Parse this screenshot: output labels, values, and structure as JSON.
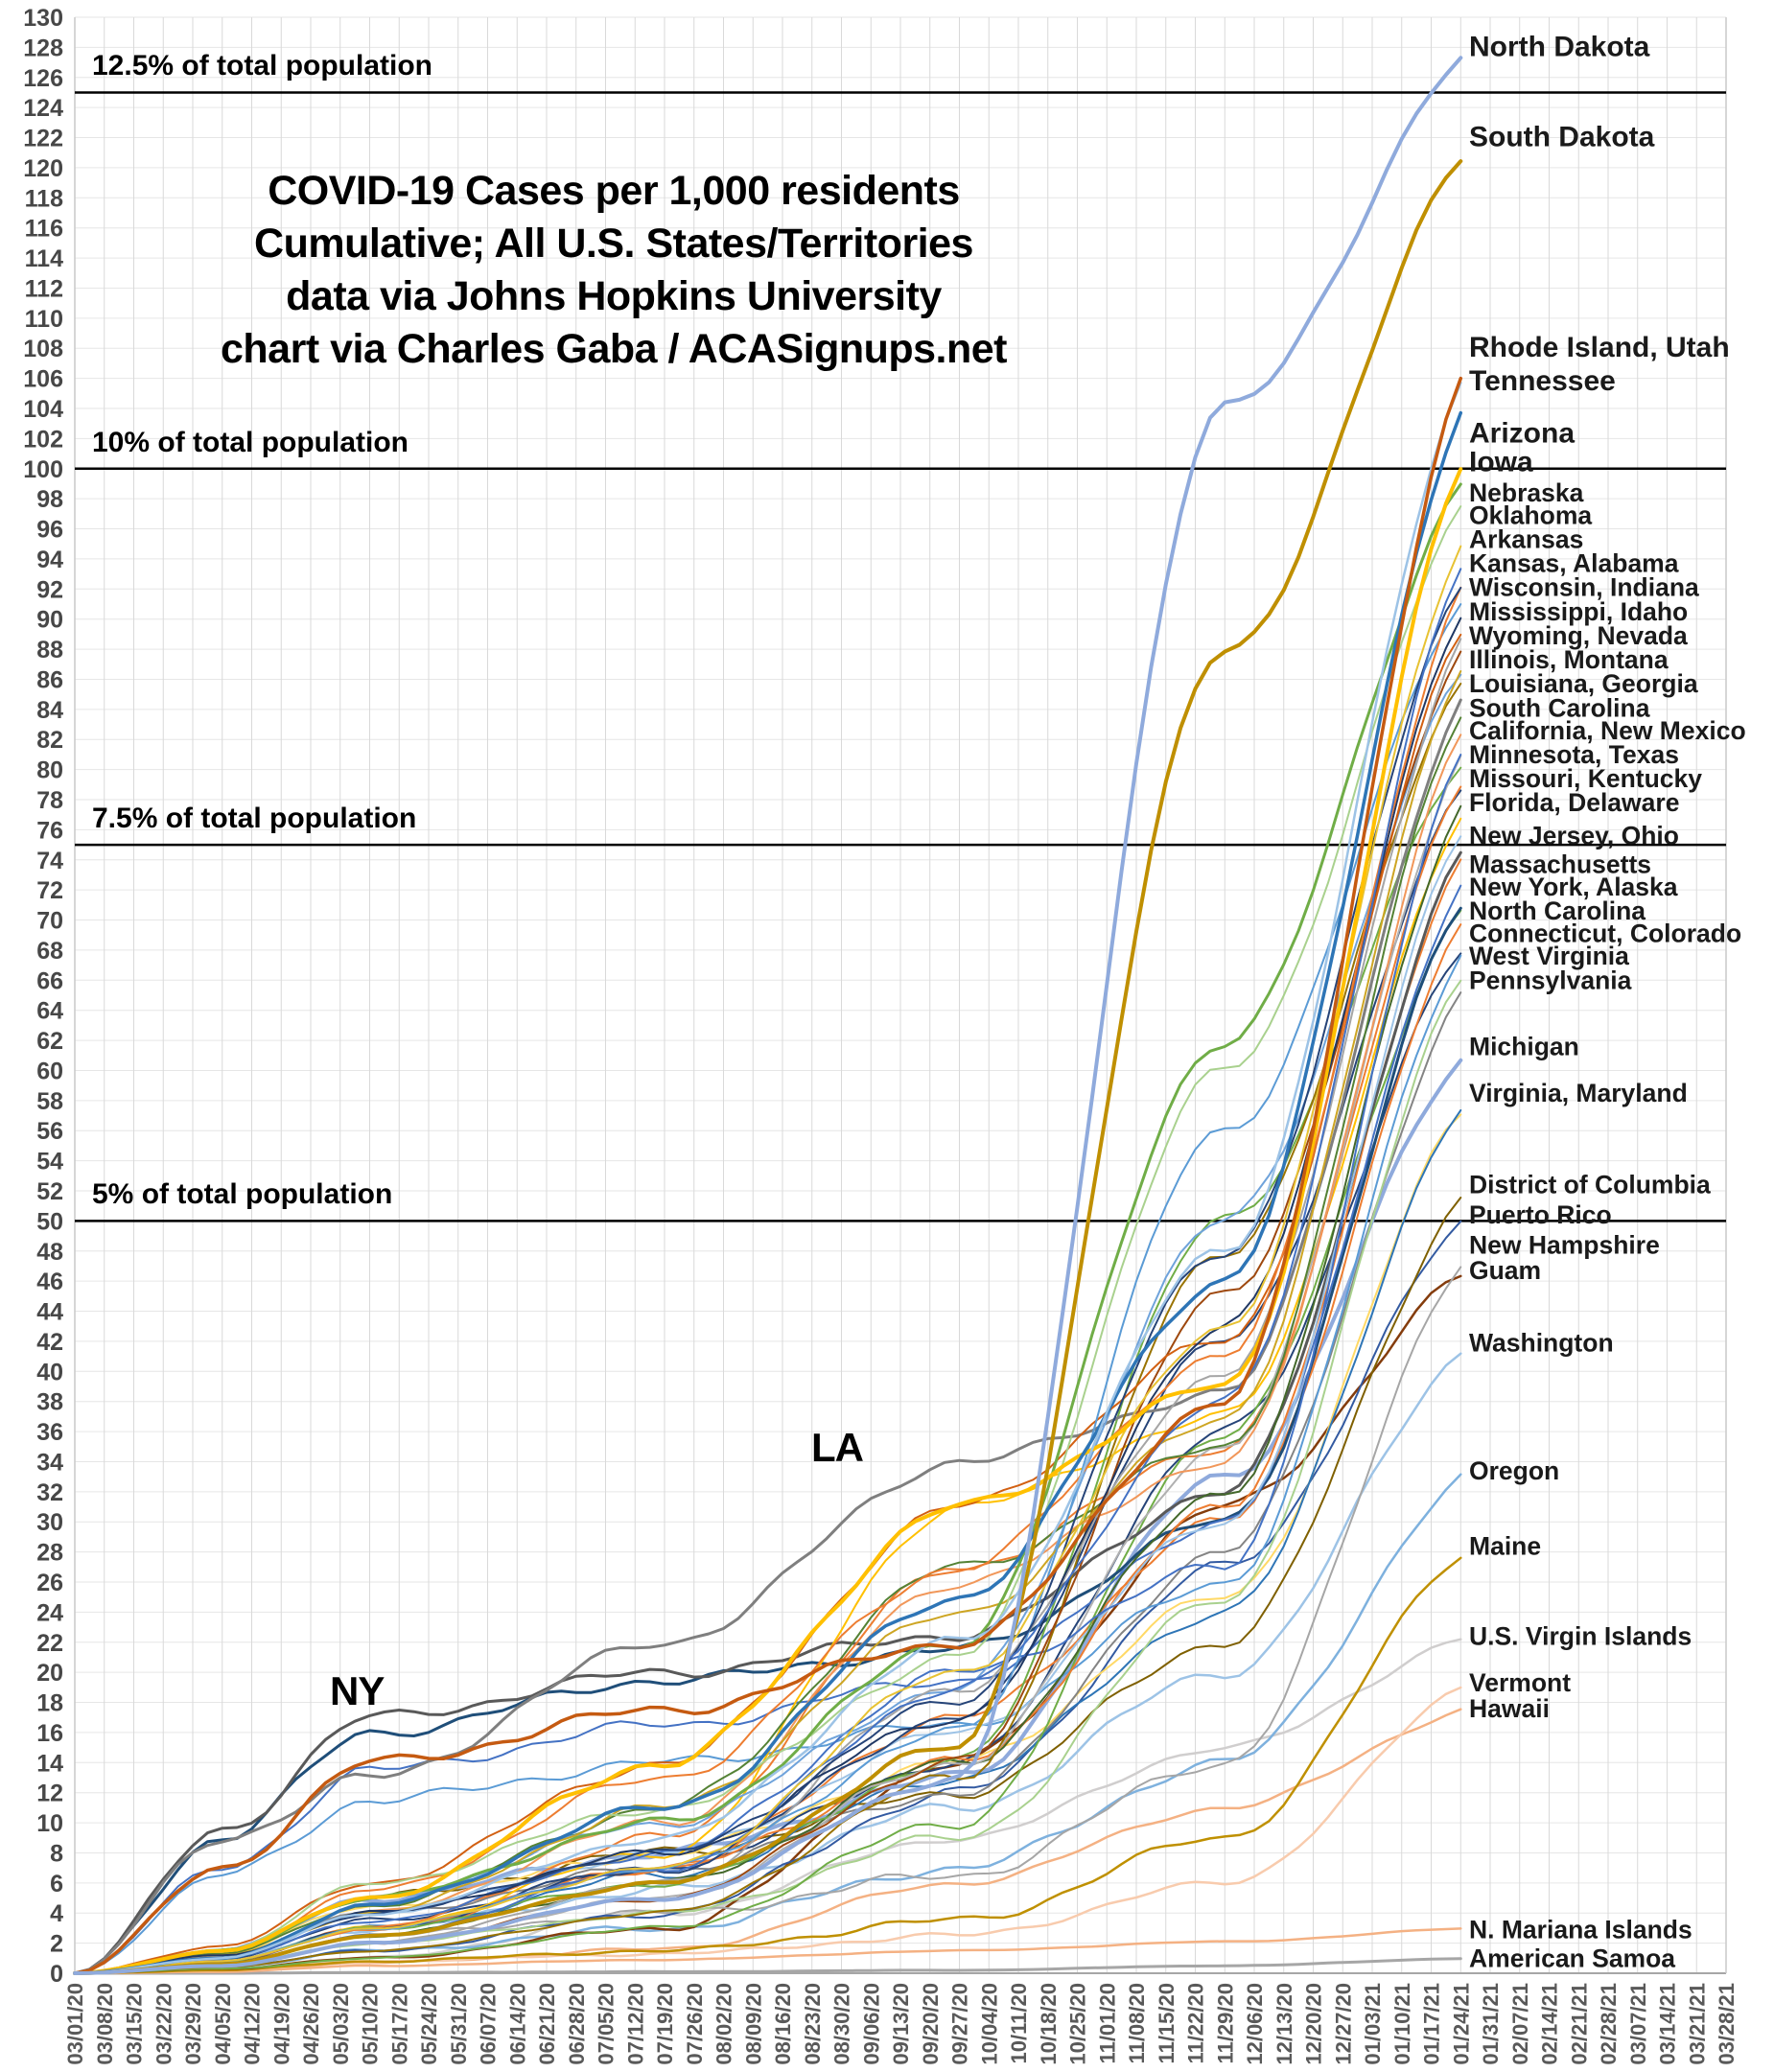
{
  "title": {
    "line1": "COVID-19 Cases per 1,000 residents",
    "line2": "Cumulative; All U.S. States/Territories",
    "line3": "data via Johns Hopkins University",
    "line4": "chart via Charles Gaba / ACASignups.net"
  },
  "chart_data": {
    "type": "line",
    "title": "COVID-19 Cases per 1,000 residents — Cumulative; All U.S. States/Territories",
    "source": "data via Johns Hopkins University; chart via Charles Gaba / ACASignups.net",
    "y_axis": {
      "min": 0,
      "max": 130,
      "step": 2,
      "grid": true
    },
    "x_axis": {
      "grid": true,
      "tick_labels": [
        "03/01/20",
        "03/08/20",
        "03/15/20",
        "03/22/20",
        "03/29/20",
        "04/05/20",
        "04/12/20",
        "04/19/20",
        "04/26/20",
        "05/03/20",
        "05/10/20",
        "05/17/20",
        "05/24/20",
        "05/31/20",
        "06/07/20",
        "06/14/20",
        "06/21/20",
        "06/28/20",
        "07/05/20",
        "07/12/20",
        "07/19/20",
        "07/26/20",
        "08/02/20",
        "08/09/20",
        "08/16/20",
        "08/23/20",
        "08/30/20",
        "09/06/20",
        "09/13/20",
        "09/20/20",
        "09/27/20",
        "10/04/20",
        "10/11/20",
        "10/18/20",
        "10/25/20",
        "11/01/20",
        "11/08/20",
        "11/15/20",
        "11/22/20",
        "11/29/20",
        "12/06/20",
        "12/13/20",
        "12/20/20",
        "12/27/20",
        "01/03/21",
        "01/10/21",
        "01/17/21",
        "01/24/21",
        "01/31/21",
        "02/07/21",
        "02/14/21",
        "02/21/21",
        "02/28/21",
        "03/07/21",
        "03/14/21",
        "03/21/21",
        "03/28/21"
      ]
    },
    "data_end_week": 47,
    "weeks_total": 56,
    "knot_weeks": [
      0,
      5,
      10,
      20,
      30,
      39,
      48
    ],
    "ref_lines": [
      {
        "label": "12.5% of total population",
        "value": 125
      },
      {
        "label": "10% of total population",
        "value": 100
      },
      {
        "label": "7.5% of total population",
        "value": 75
      },
      {
        "label": "5% of total population",
        "value": 50
      }
    ],
    "annotations": [
      {
        "text": "NY",
        "week": 9.4,
        "value": 19.8
      },
      {
        "text": "LA",
        "week": 25.5,
        "value": 35.2
      }
    ],
    "right_labels": [
      {
        "text": "North Dakota",
        "v": 128,
        "big": true
      },
      {
        "text": "South Dakota",
        "v": 122,
        "big": true
      },
      {
        "text": "Rhode Island, Utah",
        "v": 108,
        "big": true
      },
      {
        "text": "Tennessee",
        "v": 105.8,
        "big": true
      },
      {
        "text": "Arizona",
        "v": 102.3,
        "big": true
      },
      {
        "text": "Iowa",
        "v": 100.4,
        "big": true
      },
      {
        "text": "Nebraska",
        "v": 98.4
      },
      {
        "text": "Oklahoma",
        "v": 96.9
      },
      {
        "text": "Arkansas",
        "v": 95.3
      },
      {
        "text": "Kansas, Alabama",
        "v": 93.7
      },
      {
        "text": "Wisconsin, Indiana",
        "v": 92.1
      },
      {
        "text": "Mississippi, Idaho",
        "v": 90.5
      },
      {
        "text": "Wyoming, Nevada",
        "v": 88.9
      },
      {
        "text": "Illinois, Montana",
        "v": 87.3
      },
      {
        "text": "Louisiana, Georgia",
        "v": 85.7
      },
      {
        "text": "South Carolina",
        "v": 84.1
      },
      {
        "text": "California, New Mexico",
        "v": 82.6
      },
      {
        "text": "Minnesota, Texas",
        "v": 81.0
      },
      {
        "text": "Missouri, Kentucky",
        "v": 79.4
      },
      {
        "text": "Florida, Delaware",
        "v": 77.8
      },
      {
        "text": "New Jersey, Ohio",
        "v": 75.6
      },
      {
        "text": "Massachusetts",
        "v": 73.7
      },
      {
        "text": "New York, Alaska",
        "v": 72.2
      },
      {
        "text": "North Carolina",
        "v": 70.6
      },
      {
        "text": "Connecticut, Colorado",
        "v": 69.1
      },
      {
        "text": "West Virginia",
        "v": 67.6
      },
      {
        "text": "Pennsylvania",
        "v": 66.0
      },
      {
        "text": "Michigan",
        "v": 61.6
      },
      {
        "text": "Virginia, Maryland",
        "v": 58.5
      },
      {
        "text": "District of Columbia",
        "v": 52.4
      },
      {
        "text": "Puerto Rico",
        "v": 50.4
      },
      {
        "text": "New Hampshire",
        "v": 48.4
      },
      {
        "text": "Guam",
        "v": 46.7
      },
      {
        "text": "Washington",
        "v": 41.9
      },
      {
        "text": "Oregon",
        "v": 33.4
      },
      {
        "text": "Maine",
        "v": 28.4
      },
      {
        "text": "U.S. Virgin Islands",
        "v": 22.4
      },
      {
        "text": "Vermont",
        "v": 19.3
      },
      {
        "text": "Hawaii",
        "v": 17.6
      },
      {
        "text": "N. Mariana Islands",
        "v": 2.9
      },
      {
        "text": "American Samoa",
        "v": 1.0
      }
    ],
    "series": [
      {
        "name": "North Dakota",
        "color": "#8FAADC",
        "w": 4,
        "cp": [
          0,
          0.5,
          2,
          5,
          13,
          104,
          128
        ]
      },
      {
        "name": "South Dakota",
        "color": "#BF8F00",
        "w": 4,
        "cp": [
          0,
          0.6,
          2.5,
          6,
          15,
          88,
          122
        ]
      },
      {
        "name": "Rhode Island",
        "color": "#C55A11",
        "w": 3.5,
        "cp": [
          0,
          7,
          14,
          17.5,
          22,
          38,
          108.2
        ]
      },
      {
        "name": "Utah",
        "color": "#9DC3E6",
        "w": 2.5,
        "cp": [
          0,
          1,
          4,
          9,
          22,
          48,
          107.6
        ]
      },
      {
        "name": "Tennessee",
        "color": "#2E75B6",
        "w": 3.5,
        "cp": [
          0,
          1,
          4.5,
          11,
          25,
          46,
          105.8
        ]
      },
      {
        "name": "Arizona",
        "color": "#FFC000",
        "w": 4,
        "cp": [
          0,
          1.5,
          5,
          14,
          31,
          39,
          102.3
        ]
      },
      {
        "name": "Iowa",
        "color": "#70AD47",
        "w": 3,
        "cp": [
          0,
          1.5,
          5,
          10,
          22,
          62,
          100.4
        ]
      },
      {
        "name": "Nebraska",
        "color": "#A9D18E",
        "w": 2,
        "cp": [
          0,
          1.5,
          6,
          11,
          21,
          60,
          98.4
        ]
      },
      {
        "name": "Oklahoma",
        "color": "#E7C233",
        "w": 2,
        "cp": [
          0,
          0.8,
          3,
          7,
          20,
          43,
          96.9
        ]
      },
      {
        "name": "Arkansas",
        "color": "#4472C4",
        "w": 2,
        "cp": [
          0,
          0.7,
          2.5,
          7,
          19,
          38,
          95.3
        ]
      },
      {
        "name": "Kansas",
        "color": "#264478",
        "w": 2,
        "cp": [
          0,
          1,
          4,
          8,
          18,
          48,
          93.9
        ]
      },
      {
        "name": "Alabama",
        "color": "#ED7D31",
        "w": 2,
        "cp": [
          0,
          1.5,
          5.5,
          13,
          27,
          41,
          93.5
        ]
      },
      {
        "name": "Wisconsin",
        "color": "#5B9BD5",
        "w": 2,
        "cp": [
          0,
          0.8,
          3,
          7,
          16,
          56,
          92.3
        ]
      },
      {
        "name": "Indiana",
        "color": "#203864",
        "w": 2,
        "cp": [
          0,
          1.2,
          4,
          8,
          17,
          43,
          91.9
        ]
      },
      {
        "name": "Mississippi",
        "color": "#D26012",
        "w": 2,
        "cp": [
          0,
          1.8,
          6,
          14,
          31,
          42,
          90.7
        ]
      },
      {
        "name": "Idaho",
        "color": "#A5A5A5",
        "w": 2,
        "cp": [
          0,
          0.6,
          2,
          6,
          19,
          40,
          90.3
        ]
      },
      {
        "name": "Wyoming",
        "color": "#9E480E",
        "w": 2,
        "cp": [
          0,
          0.5,
          2,
          5,
          14,
          45,
          89.1
        ]
      },
      {
        "name": "Nevada",
        "color": "#CDA523",
        "w": 2,
        "cp": [
          0,
          1.2,
          4,
          11,
          24,
          37,
          88.7
        ]
      },
      {
        "name": "Illinois",
        "color": "#6FA3DB",
        "w": 2,
        "cp": [
          0,
          1.5,
          5,
          10,
          19,
          50,
          87.5
        ]
      },
      {
        "name": "Montana",
        "color": "#997300",
        "w": 2,
        "cp": [
          0,
          0.4,
          1.5,
          4,
          13,
          48,
          87.1
        ]
      },
      {
        "name": "Louisiana",
        "color": "#7F7F7F",
        "w": 3,
        "cp": [
          0,
          9,
          13,
          22,
          34,
          38.5,
          85.9
        ]
      },
      {
        "name": "Georgia",
        "color": "#548235",
        "w": 2,
        "cp": [
          0,
          1.3,
          4.5,
          11,
          27,
          35,
          85.5
        ]
      },
      {
        "name": "South Carolina",
        "color": "#F1975A",
        "w": 2,
        "cp": [
          0,
          1.2,
          4,
          10,
          26,
          34,
          84.1
        ]
      },
      {
        "name": "California",
        "color": "#4472C4",
        "w": 2,
        "cp": [
          0,
          1,
          3.5,
          8,
          20,
          27,
          82.8
        ]
      },
      {
        "name": "New Mexico",
        "color": "#B0B0B0",
        "w": 2,
        "cp": [
          0,
          0.6,
          2,
          5,
          14,
          35,
          82.4
        ]
      },
      {
        "name": "Minnesota",
        "color": "#70AD47",
        "w": 2,
        "cp": [
          0,
          0.8,
          3,
          6,
          14,
          50,
          81.2
        ]
      },
      {
        "name": "Texas",
        "color": "#ED7D31",
        "w": 2,
        "cp": [
          0,
          0.8,
          3,
          9,
          27,
          35,
          80.8
        ]
      },
      {
        "name": "Missouri",
        "color": "#264478",
        "w": 2,
        "cp": [
          0,
          0.8,
          3,
          7,
          17,
          42,
          79.6
        ]
      },
      {
        "name": "Kentucky",
        "color": "#43682B",
        "w": 2,
        "cp": [
          0,
          0.7,
          2.5,
          6,
          14,
          32,
          79.2
        ]
      },
      {
        "name": "Florida",
        "color": "#FFC000",
        "w": 2,
        "cp": [
          0,
          0.8,
          3,
          8,
          31,
          37,
          78.0
        ]
      },
      {
        "name": "Delaware",
        "color": "#9DC3E6",
        "w": 2,
        "cp": [
          0,
          1.2,
          4,
          8,
          16,
          30,
          77.6
        ]
      },
      {
        "name": "New Jersey",
        "color": "#595959",
        "w": 3,
        "cp": [
          0,
          9.5,
          17,
          20,
          22.5,
          32,
          75.8
        ]
      },
      {
        "name": "Ohio",
        "color": "#ED7D31",
        "w": 2,
        "cp": [
          0,
          0.8,
          3,
          7,
          14,
          31,
          75.4
        ]
      },
      {
        "name": "Massachusetts",
        "color": "#4472C4",
        "w": 2,
        "cp": [
          0,
          7,
          13.5,
          16.5,
          19.5,
          30,
          73.8
        ]
      },
      {
        "name": "New York",
        "color": "#1F4E79",
        "w": 3,
        "cp": [
          0,
          9,
          16,
          19.5,
          21.5,
          30,
          72.4
        ]
      },
      {
        "name": "Alaska",
        "color": "#70AD47",
        "w": 2,
        "cp": [
          0,
          0.3,
          1,
          3,
          10,
          36,
          72.0
        ]
      },
      {
        "name": "North Carolina",
        "color": "#ED7D31",
        "w": 2,
        "cp": [
          0,
          0.8,
          3,
          7,
          17,
          30,
          70.7
        ]
      },
      {
        "name": "Connecticut",
        "color": "#5B9BD5",
        "w": 2,
        "cp": [
          0,
          6.5,
          11.5,
          14,
          16.5,
          26,
          69.3
        ]
      },
      {
        "name": "Colorado",
        "color": "#264478",
        "w": 2,
        "cp": [
          0,
          1,
          3.5,
          7,
          14,
          36,
          68.9
        ]
      },
      {
        "name": "West Virginia",
        "color": "#A9D18E",
        "w": 2,
        "cp": [
          0,
          0.6,
          2,
          4,
          9,
          25,
          67.7
        ]
      },
      {
        "name": "Pennsylvania",
        "color": "#848484",
        "w": 2,
        "cp": [
          0,
          1.2,
          4,
          7,
          12,
          28,
          66.1
        ]
      },
      {
        "name": "Michigan",
        "color": "#8FAADC",
        "w": 4,
        "cp": [
          0,
          1.5,
          5,
          8,
          13,
          33,
          61.7
        ]
      },
      {
        "name": "Virginia",
        "color": "#2E75B6",
        "w": 2,
        "cp": [
          0,
          0.8,
          3,
          6.5,
          13,
          24,
          58.7
        ]
      },
      {
        "name": "Maryland",
        "color": "#FFD966",
        "w": 2,
        "cp": [
          0,
          1.3,
          4.5,
          8,
          14,
          25,
          58.3
        ]
      },
      {
        "name": "District of Columbia",
        "color": "#7F6000",
        "w": 2,
        "cp": [
          0,
          1.5,
          5,
          8,
          12,
          22,
          52.5
        ]
      },
      {
        "name": "Puerto Rico",
        "color": "#335AA1",
        "w": 2,
        "cp": [
          0,
          0.4,
          1.5,
          4,
          12,
          27,
          50.5
        ]
      },
      {
        "name": "New Hampshire",
        "color": "#A6A6A6",
        "w": 2,
        "cp": [
          0,
          0.7,
          2.5,
          4,
          6.5,
          14,
          48.5
        ]
      },
      {
        "name": "Guam",
        "color": "#843C0C",
        "w": 2.5,
        "cp": [
          0,
          0.3,
          1,
          3,
          14,
          31,
          46.8
        ]
      },
      {
        "name": "Washington",
        "color": "#9DC3E6",
        "w": 2.5,
        "cp": [
          0,
          1,
          3,
          5.5,
          11,
          20,
          42.0
        ]
      },
      {
        "name": "Oregon",
        "color": "#7EB1DE",
        "w": 2.5,
        "cp": [
          0,
          0.4,
          1.5,
          3,
          7,
          14,
          33.5
        ]
      },
      {
        "name": "Maine",
        "color": "#BF9000",
        "w": 2.5,
        "cp": [
          0,
          0.2,
          0.8,
          1.5,
          3.5,
          9,
          28.5
        ]
      },
      {
        "name": "U.S. Virgin Islands",
        "color": "#D0CECE",
        "w": 2.5,
        "cp": [
          0,
          0.3,
          1,
          4,
          9,
          15,
          22.5
        ]
      },
      {
        "name": "Vermont",
        "color": "#F8CBAD",
        "w": 2.5,
        "cp": [
          0,
          0.2,
          0.8,
          1.3,
          2.5,
          6,
          19.4
        ]
      },
      {
        "name": "Hawaii",
        "color": "#F4B183",
        "w": 2.5,
        "cp": [
          0,
          0.2,
          0.7,
          1.6,
          6,
          11,
          17.7
        ]
      },
      {
        "name": "N. Mariana Islands",
        "color": "#F4B183",
        "w": 2.5,
        "cp": [
          0,
          0.1,
          0.5,
          0.9,
          1.5,
          2.1,
          3.0
        ]
      },
      {
        "name": "American Samoa",
        "color": "#A6A6A6",
        "w": 3,
        "cp": [
          0,
          0,
          0.05,
          0.1,
          0.2,
          0.5,
          1.0
        ]
      }
    ]
  }
}
